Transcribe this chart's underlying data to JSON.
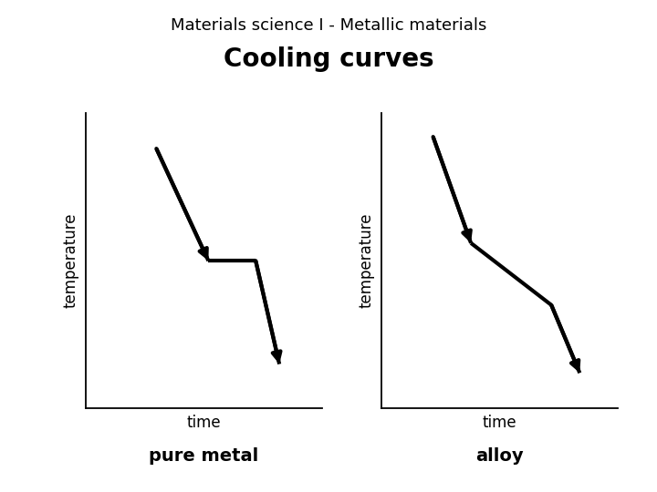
{
  "title": "Materials science I - Metallic materials",
  "subtitle": "Cooling curves",
  "background_color": "#ffffff",
  "line_color": "#000000",
  "line_width": 3.0,
  "left_label": "pure metal",
  "right_label": "alloy",
  "xlabel": "time",
  "ylabel": "temperature",
  "pure_metal_segments": [
    {
      "x": [
        0.3,
        0.52
      ],
      "y": [
        0.88,
        0.5
      ],
      "arrow": true
    },
    {
      "x": [
        0.52,
        0.72
      ],
      "y": [
        0.5,
        0.5
      ],
      "arrow": false
    },
    {
      "x": [
        0.72,
        0.82
      ],
      "y": [
        0.5,
        0.15
      ],
      "arrow": true
    }
  ],
  "alloy_segments": [
    {
      "x": [
        0.22,
        0.38
      ],
      "y": [
        0.92,
        0.56
      ],
      "arrow": true
    },
    {
      "x": [
        0.38,
        0.72
      ],
      "y": [
        0.56,
        0.35
      ],
      "arrow": false
    },
    {
      "x": [
        0.72,
        0.84
      ],
      "y": [
        0.35,
        0.12
      ],
      "arrow": true
    }
  ],
  "title_fontsize": 13,
  "subtitle_fontsize": 20,
  "label_fontsize": 14,
  "axis_label_fontsize": 12
}
